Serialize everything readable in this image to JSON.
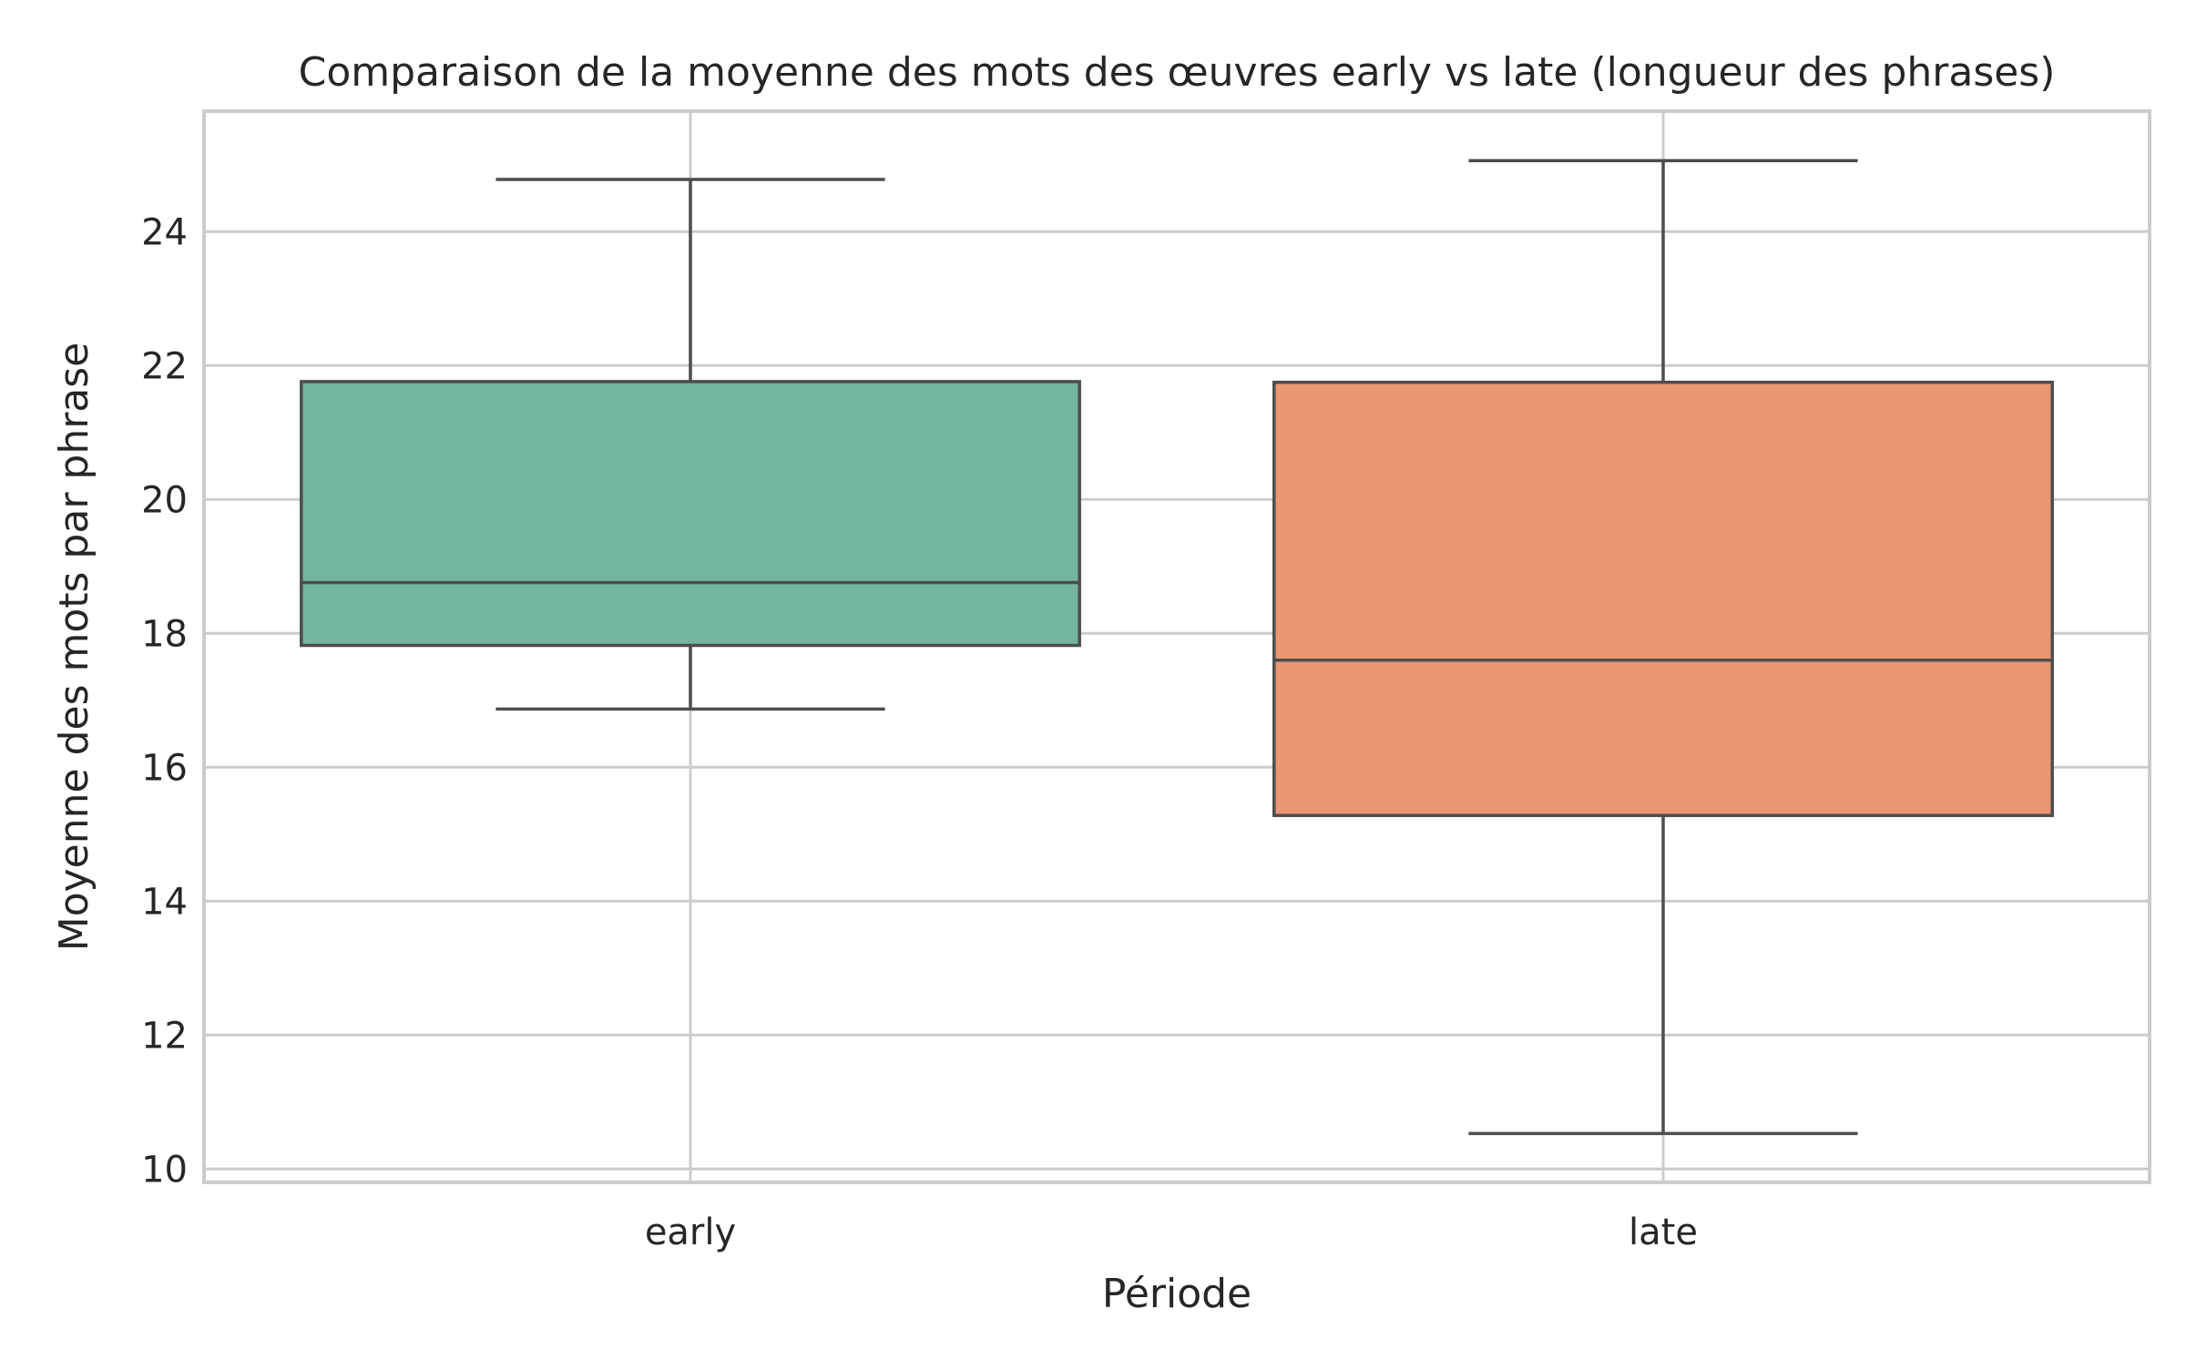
{
  "chart_data": {
    "type": "box",
    "title": "Comparaison de la moyenne des mots des œuvres early vs late (longueur des phrases)",
    "xlabel": "Période",
    "ylabel": "Moyenne des mots par phrase",
    "categories": [
      "early",
      "late"
    ],
    "ylim": [
      9.8,
      25.8
    ],
    "yticks": [
      10,
      12,
      14,
      16,
      18,
      20,
      22,
      24
    ],
    "grid": true,
    "series": [
      {
        "category": "early",
        "color": "#74b59f",
        "whisker_low": 16.87,
        "q1": 17.82,
        "median": 18.76,
        "q3": 21.76,
        "whisker_high": 24.78
      },
      {
        "category": "late",
        "color": "#e99675",
        "whisker_low": 10.53,
        "q1": 15.28,
        "median": 17.6,
        "q3": 21.75,
        "whisker_high": 25.06
      }
    ]
  }
}
